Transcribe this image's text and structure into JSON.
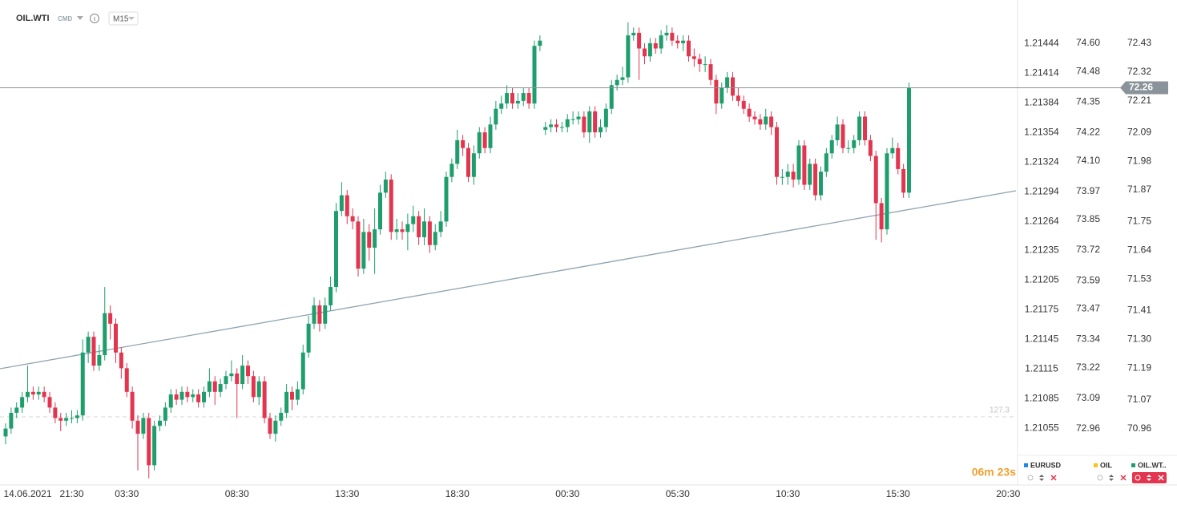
{
  "header": {
    "symbol": "OIL.WTI",
    "kind": "CMD",
    "timeframe": "M15"
  },
  "chart_data": {
    "type": "candlestick",
    "open": [
      70.93,
      70.96,
      71.02,
      71.04,
      71.08,
      71.1,
      71.09,
      71.1,
      71.08,
      71.04,
      71.0,
      70.99,
      71.0,
      71.0,
      71.01,
      71.25,
      71.31,
      71.2,
      71.24,
      71.4,
      71.36,
      71.25,
      71.19,
      71.1,
      70.99,
      70.94,
      71.0,
      70.82,
      70.97,
      70.99,
      71.04,
      71.09,
      71.07,
      71.1,
      71.08,
      71.09,
      71.06,
      71.1,
      71.14,
      71.1,
      71.13,
      71.16,
      71.17,
      71.13,
      71.2,
      71.16,
      71.08,
      71.14,
      71.0,
      70.94,
      70.99,
      71.02,
      71.1,
      71.07,
      71.11,
      71.25,
      71.36,
      71.43,
      71.36,
      71.43,
      71.5,
      71.79,
      71.85,
      71.77,
      71.75,
      71.57,
      71.71,
      71.65,
      71.72,
      71.86,
      71.91,
      71.71,
      71.72,
      71.71,
      71.74,
      71.77,
      71.69,
      71.75,
      71.66,
      71.71,
      71.75,
      71.92,
      71.97,
      72.06,
      72.03,
      71.92,
      72.01,
      72.09,
      72.03,
      72.12,
      72.18,
      72.2,
      72.24,
      72.2,
      72.21,
      72.24,
      72.2,
      72.42,
      72.1,
      72.11,
      72.12,
      72.11,
      72.11,
      72.14,
      72.14,
      72.15,
      72.09,
      72.17,
      72.09,
      72.11,
      72.18,
      72.27,
      72.29,
      72.3,
      72.46,
      72.47,
      72.41,
      72.38,
      72.43,
      72.41,
      72.46,
      72.47,
      72.44,
      72.43,
      72.44,
      72.38,
      72.37,
      72.35,
      72.35,
      72.29,
      72.2,
      72.26,
      72.3,
      72.23,
      72.21,
      72.18,
      72.15,
      72.14,
      72.12,
      72.15,
      72.11,
      71.92,
      71.92,
      71.94,
      71.91,
      72.04,
      71.89,
      71.97,
      71.85,
      71.94,
      72.01,
      72.06,
      72.12,
      72.03,
      72.03,
      72.06,
      72.15,
      72.06,
      72.0,
      71.82,
      71.72,
      72.01,
      72.03,
      71.95,
      71.86
    ],
    "high": [
      70.98,
      71.04,
      71.06,
      71.1,
      71.2,
      71.12,
      71.12,
      71.12,
      71.1,
      71.06,
      71.02,
      71.02,
      71.03,
      71.03,
      71.3,
      71.33,
      71.33,
      71.28,
      71.5,
      71.43,
      71.38,
      71.27,
      71.21,
      71.12,
      71.01,
      71.02,
      71.02,
      70.99,
      71.01,
      71.06,
      71.11,
      71.11,
      71.12,
      71.12,
      71.11,
      71.11,
      71.12,
      71.19,
      71.16,
      71.15,
      71.18,
      71.22,
      71.19,
      71.24,
      71.22,
      71.18,
      71.16,
      71.16,
      71.02,
      71.01,
      71.04,
      71.13,
      71.12,
      71.14,
      71.28,
      71.39,
      71.46,
      71.45,
      71.46,
      71.54,
      71.82,
      71.9,
      71.87,
      71.8,
      71.77,
      71.76,
      71.74,
      71.8,
      71.89,
      71.94,
      71.93,
      71.76,
      71.75,
      71.78,
      71.81,
      71.79,
      71.8,
      71.77,
      71.74,
      71.79,
      71.94,
      71.99,
      72.1,
      72.08,
      72.05,
      72.04,
      72.11,
      72.11,
      72.15,
      72.21,
      72.23,
      72.27,
      72.26,
      72.24,
      72.26,
      72.26,
      72.44,
      72.46,
      72.13,
      72.14,
      72.14,
      72.13,
      72.16,
      72.17,
      72.17,
      72.17,
      72.19,
      72.19,
      72.14,
      72.2,
      72.29,
      72.31,
      72.34,
      72.51,
      72.49,
      72.49,
      72.43,
      72.45,
      72.45,
      72.48,
      72.5,
      72.49,
      72.46,
      72.46,
      72.46,
      72.41,
      72.39,
      72.38,
      72.37,
      72.31,
      72.28,
      72.32,
      72.32,
      72.26,
      72.23,
      72.2,
      72.17,
      72.16,
      72.18,
      72.17,
      72.13,
      71.95,
      71.97,
      71.97,
      72.06,
      72.06,
      71.99,
      71.99,
      71.96,
      72.03,
      72.08,
      72.15,
      72.14,
      72.06,
      72.08,
      72.17,
      72.17,
      72.08,
      72.02,
      71.84,
      72.03,
      72.07,
      72.05,
      71.97,
      72.28
    ],
    "low": [
      70.9,
      70.94,
      71.0,
      71.02,
      71.06,
      71.07,
      71.07,
      71.06,
      71.02,
      70.98,
      70.95,
      70.97,
      70.98,
      70.98,
      70.99,
      71.21,
      71.18,
      71.18,
      71.22,
      71.3,
      71.21,
      71.15,
      71.08,
      70.96,
      70.8,
      70.92,
      70.77,
      70.8,
      70.95,
      70.97,
      71.02,
      71.05,
      71.05,
      71.06,
      71.06,
      71.04,
      71.04,
      71.08,
      71.05,
      71.08,
      71.11,
      71.14,
      71.0,
      71.11,
      71.13,
      71.06,
      71.05,
      70.98,
      70.92,
      70.91,
      70.97,
      71.0,
      71.03,
      71.05,
      71.09,
      71.23,
      71.34,
      71.33,
      71.34,
      71.41,
      71.48,
      71.77,
      71.74,
      71.72,
      71.54,
      71.55,
      71.6,
      71.55,
      71.7,
      71.84,
      71.68,
      71.68,
      71.68,
      71.64,
      71.71,
      71.66,
      71.66,
      71.63,
      71.64,
      71.69,
      71.73,
      71.9,
      71.95,
      72.0,
      71.9,
      71.89,
      71.99,
      72.01,
      72.01,
      72.1,
      72.16,
      72.18,
      72.18,
      72.18,
      72.19,
      72.18,
      72.18,
      72.4,
      72.08,
      72.09,
      72.09,
      72.09,
      72.09,
      72.12,
      72.12,
      72.07,
      72.05,
      72.07,
      72.07,
      72.09,
      72.16,
      72.25,
      72.27,
      72.28,
      72.44,
      72.29,
      72.35,
      72.36,
      72.39,
      72.39,
      72.44,
      72.42,
      72.41,
      72.4,
      72.36,
      72.34,
      72.32,
      72.32,
      72.27,
      72.16,
      72.18,
      72.24,
      72.21,
      72.19,
      72.16,
      72.13,
      72.12,
      72.1,
      72.1,
      72.08,
      71.89,
      71.89,
      71.89,
      71.88,
      71.89,
      71.87,
      71.87,
      71.83,
      71.83,
      71.92,
      71.99,
      72.04,
      72.01,
      72.01,
      72.01,
      72.04,
      72.04,
      71.98,
      71.68,
      71.67,
      71.7,
      71.99,
      71.93,
      71.84,
      71.84
    ],
    "close": [
      70.96,
      71.02,
      71.04,
      71.08,
      71.1,
      71.09,
      71.1,
      71.08,
      71.04,
      71.0,
      70.99,
      71.0,
      71.0,
      71.01,
      71.25,
      71.31,
      71.2,
      71.24,
      71.4,
      71.36,
      71.25,
      71.19,
      71.1,
      70.99,
      70.94,
      71.0,
      70.82,
      70.97,
      70.99,
      71.04,
      71.09,
      71.07,
      71.1,
      71.08,
      71.09,
      71.06,
      71.1,
      71.14,
      71.1,
      71.13,
      71.16,
      71.17,
      71.13,
      71.2,
      71.16,
      71.08,
      71.14,
      71.0,
      70.94,
      70.99,
      71.02,
      71.1,
      71.07,
      71.11,
      71.25,
      71.36,
      71.43,
      71.36,
      71.43,
      71.5,
      71.79,
      71.85,
      71.77,
      71.75,
      71.57,
      71.71,
      71.65,
      71.72,
      71.86,
      71.91,
      71.71,
      71.72,
      71.71,
      71.74,
      71.77,
      71.69,
      71.75,
      71.66,
      71.71,
      71.75,
      71.92,
      71.97,
      72.06,
      72.03,
      71.92,
      72.01,
      72.09,
      72.03,
      72.12,
      72.18,
      72.2,
      72.24,
      72.2,
      72.21,
      72.24,
      72.2,
      72.42,
      72.44,
      72.11,
      72.12,
      72.11,
      72.11,
      72.14,
      72.14,
      72.15,
      72.09,
      72.17,
      72.09,
      72.11,
      72.18,
      72.27,
      72.29,
      72.3,
      72.46,
      72.47,
      72.41,
      72.38,
      72.43,
      72.41,
      72.46,
      72.47,
      72.44,
      72.43,
      72.44,
      72.38,
      72.37,
      72.35,
      72.35,
      72.29,
      72.2,
      72.26,
      72.3,
      72.23,
      72.21,
      72.18,
      72.15,
      72.14,
      72.12,
      72.15,
      72.11,
      71.92,
      71.92,
      71.94,
      71.91,
      72.04,
      71.89,
      71.97,
      71.85,
      71.94,
      72.01,
      72.06,
      72.12,
      72.03,
      72.03,
      72.06,
      72.15,
      72.06,
      72.0,
      71.82,
      71.72,
      72.01,
      72.03,
      71.95,
      71.86,
      72.26
    ],
    "up_color": "#1e9e6c",
    "down_color": "#e2354f",
    "ylim": [
      70.76,
      72.595
    ],
    "yticks": [
      72.43,
      72.32,
      72.21,
      72.09,
      71.98,
      71.87,
      71.75,
      71.64,
      71.53,
      71.41,
      {
        "value": 71.3,
        "label": "71.30"
      },
      71.19,
      71.07,
      70.96
    ],
    "last_price": 72.26,
    "xticks": [
      {
        "value": 4,
        "label": "14.06.2021"
      },
      {
        "value": 12,
        "label": "21:30"
      },
      {
        "value": 22,
        "label": "03:30"
      },
      {
        "value": 42,
        "label": "08:30"
      },
      {
        "value": 62,
        "label": "13:30"
      },
      {
        "value": 82,
        "label": "18:30"
      },
      {
        "value": 102,
        "label": "00:30"
      },
      {
        "value": 122,
        "label": "05:30"
      },
      {
        "value": 142,
        "label": "10:30"
      },
      {
        "value": 162,
        "label": "15:30"
      },
      {
        "value": 182,
        "label": "20:30"
      }
    ],
    "y2lim": [
      1.21002,
      1.21488
    ],
    "y2ticks": [
      1.21444,
      1.21414,
      1.21384,
      1.21354,
      1.21324,
      1.21294,
      1.21264,
      1.21235,
      1.21205,
      1.21175,
      1.21145,
      1.21115,
      1.21085,
      1.21055
    ],
    "y3lim": [
      72.738,
      74.784
    ],
    "y3ticks": [
      {
        "value": 74.6,
        "label": "74.60"
      },
      74.48,
      74.35,
      74.22,
      {
        "value": 74.1,
        "label": "74.10"
      },
      73.97,
      73.85,
      73.72,
      73.59,
      73.47,
      73.34,
      73.22,
      73.09,
      72.96
    ],
    "annotation": "127.3"
  },
  "countdown": "06m 23s",
  "legend": [
    {
      "name": "EURUSD",
      "color": "#1e88e5"
    },
    {
      "name": "OIL",
      "color": "#f5c518"
    },
    {
      "name": "OIL.WT..",
      "color": "#1e9e6c"
    }
  ]
}
